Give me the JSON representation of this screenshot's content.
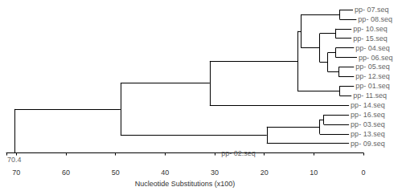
{
  "chart_data": {
    "type": "dendrogram",
    "x_label": "Nucleotide Substitutions (x100)",
    "xlim": [
      72,
      0
    ],
    "xticks": [
      0,
      10,
      20,
      30,
      40,
      50,
      60,
      70
    ],
    "color": "#000000",
    "tick_labels": "x",
    "root_label": "70.4",
    "tree": {
      "height": 70.4,
      "children": [
        {
          "height": 49,
          "children": [
            {
              "height": 31,
              "children": [
                {
                  "height": 13.3,
                  "children": [
                    {
                      "height": 12.6,
                      "children": [
                        {
                          "height": 4.8,
                          "children": [
                            {
                              "label": "pp- 07.seq",
                              "height": 2.1
                            },
                            {
                              "label": "pp- 08.seq",
                              "height": 1.4
                            }
                          ]
                        },
                        {
                          "height": 8.8,
                          "children": [
                            {
                              "height": 5.6,
                              "children": [
                                {
                                  "label": "pp- 10.seq",
                                  "height": 2.4
                                },
                                {
                                  "label": "pp- 15.seq",
                                  "height": 2.4
                                }
                              ]
                            },
                            {
                              "height": 7.2,
                              "children": [
                                {
                                  "height": 5.6,
                                  "children": [
                                    {
                                      "label": "pp- 04.seq",
                                      "height": 1.9
                                    },
                                    {
                                      "label": "pp- 06.seq",
                                      "height": 1.3
                                    }
                                  ]
                                },
                                {
                                  "height": 5,
                                  "children": [
                                    {
                                      "label": "pp- 05.seq",
                                      "height": 1.9
                                    },
                                    {
                                      "label": "pp- 12.seq",
                                      "height": 1.9
                                    }
                                  ]
                                }
                              ]
                            }
                          ]
                        }
                      ]
                    },
                    {
                      "height": 4.8,
                      "children": [
                        {
                          "label": "pp- 01.seq",
                          "height": 1.9
                        },
                        {
                          "label": "pp- 11.seq",
                          "height": 2.4
                        }
                      ]
                    }
                  ]
                },
                {
                  "label": "pp- 14.seq",
                  "height": 2.9
                }
              ]
            },
            {
              "height": 19.5,
              "children": [
                {
                  "height": 8.8,
                  "children": [
                    {
                      "height": 8,
                      "children": [
                        {
                          "label": "pp- 16.seq",
                          "height": 2.9
                        },
                        {
                          "label": "pp- 03.seq",
                          "height": 2.9
                        }
                      ]
                    },
                    {
                      "label": "pp- 13.seq",
                      "height": 2.9
                    }
                  ]
                },
                {
                  "label": "pp- 09.seq",
                  "height": 2.9
                }
              ]
            }
          ]
        },
        {
          "label": "pp- 02.seq",
          "height": 29
        }
      ]
    }
  }
}
